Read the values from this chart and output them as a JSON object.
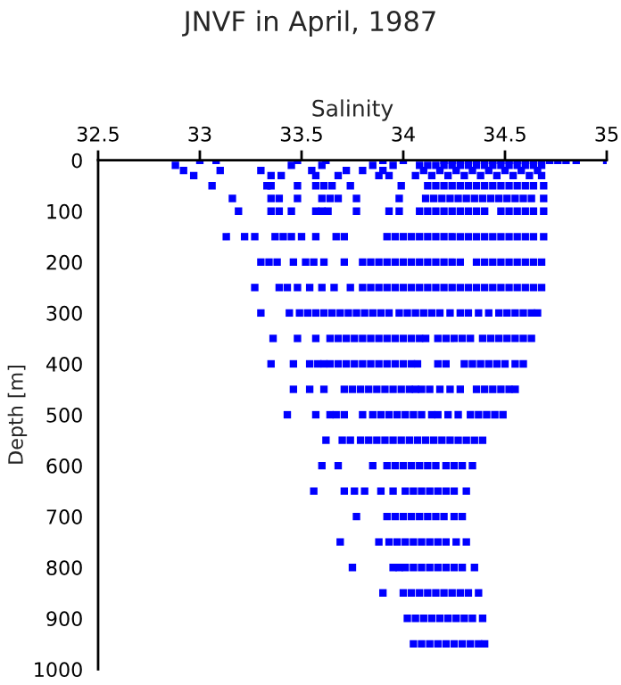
{
  "chart_data": {
    "type": "scatter",
    "title": "JNVF in April, 1987",
    "xlabel": "Salinity",
    "ylabel": "Depth [m]",
    "xlim": [
      32.5,
      35
    ],
    "xticks": [
      32.5,
      33,
      33.5,
      34,
      34.5,
      35
    ],
    "ylim": [
      1000,
      0
    ],
    "yticks": [
      0,
      100,
      200,
      300,
      400,
      500,
      600,
      700,
      800,
      900,
      1000
    ],
    "grid": false,
    "marker": "square",
    "series": [
      {
        "color": "#0000ff",
        "x": [
          33.0,
          33.08,
          33.48,
          33.62,
          33.9,
          34.0,
          34.2,
          34.24,
          34.28,
          34.32,
          34.36,
          34.4,
          34.44,
          34.48,
          34.52,
          34.56,
          34.6,
          34.64,
          34.68,
          34.72,
          34.76,
          34.8,
          34.85,
          35.0
        ],
        "values": [
          0,
          0,
          0,
          0,
          0,
          0,
          0,
          0,
          0,
          0,
          0,
          0,
          0,
          0,
          0,
          0,
          0,
          0,
          0,
          0,
          0,
          0,
          0,
          0
        ]
      },
      {
        "color": "#0000ff",
        "x": [
          32.88,
          33.45,
          33.6,
          33.85,
          33.95,
          34.08,
          34.12,
          34.16,
          34.2,
          34.24,
          34.28,
          34.32,
          34.36,
          34.4,
          34.44,
          34.48,
          34.52,
          34.56,
          34.6,
          34.64,
          34.68
        ],
        "values": [
          10,
          10,
          10,
          10,
          10,
          10,
          10,
          10,
          10,
          10,
          10,
          10,
          10,
          10,
          10,
          10,
          10,
          10,
          10,
          10,
          10
        ]
      },
      {
        "color": "#0000ff",
        "x": [
          32.92,
          33.1,
          33.3,
          33.55,
          33.72,
          33.8,
          33.9,
          34.1,
          34.18,
          34.26,
          34.34,
          34.42,
          34.5,
          34.58,
          34.66
        ],
        "values": [
          20,
          20,
          20,
          20,
          20,
          20,
          20,
          20,
          20,
          20,
          20,
          20,
          20,
          20,
          20
        ]
      },
      {
        "color": "#0000ff",
        "x": [
          32.97,
          33.35,
          33.4,
          33.57,
          33.68,
          33.88,
          33.93,
          34.06,
          34.14,
          34.22,
          34.3,
          34.38,
          34.46,
          34.54,
          34.62,
          34.68
        ],
        "values": [
          30,
          30,
          30,
          30,
          30,
          30,
          30,
          30,
          30,
          30,
          30,
          30,
          30,
          30,
          30,
          30
        ]
      },
      {
        "color": "#0000ff",
        "x": [
          33.06,
          33.33,
          33.35,
          33.48,
          33.57,
          33.61,
          33.65,
          33.74,
          33.99,
          34.12,
          34.16,
          34.2,
          34.24,
          34.28,
          34.32,
          34.36,
          34.4,
          34.44,
          34.48,
          34.52,
          34.56,
          34.6,
          34.64,
          34.69
        ],
        "values": [
          50,
          50,
          50,
          50,
          50,
          50,
          50,
          50,
          50,
          50,
          50,
          50,
          50,
          50,
          50,
          50,
          50,
          50,
          50,
          50,
          50,
          50,
          50,
          50
        ]
      },
      {
        "color": "#0000ff",
        "x": [
          33.16,
          33.35,
          33.39,
          33.48,
          33.6,
          33.64,
          33.68,
          33.77,
          33.98,
          34.11,
          34.15,
          34.19,
          34.23,
          34.27,
          34.31,
          34.35,
          34.39,
          34.43,
          34.47,
          34.51,
          34.55,
          34.59,
          34.63,
          34.69
        ],
        "values": [
          75,
          75,
          75,
          75,
          75,
          75,
          75,
          75,
          75,
          75,
          75,
          75,
          75,
          75,
          75,
          75,
          75,
          75,
          75,
          75,
          75,
          75,
          75,
          75
        ]
      },
      {
        "color": "#0000ff",
        "x": [
          33.19,
          33.35,
          33.39,
          33.45,
          33.57,
          33.6,
          33.63,
          33.77,
          33.93,
          33.98,
          34.08,
          34.12,
          34.16,
          34.2,
          34.24,
          34.28,
          34.32,
          34.36,
          34.4,
          34.48,
          34.52,
          34.56,
          34.6,
          34.64,
          34.69
        ],
        "values": [
          100,
          100,
          100,
          100,
          100,
          100,
          100,
          100,
          100,
          100,
          100,
          100,
          100,
          100,
          100,
          100,
          100,
          100,
          100,
          100,
          100,
          100,
          100,
          100,
          100
        ]
      },
      {
        "color": "#0000ff",
        "x": [
          33.13,
          33.22,
          33.27,
          33.37,
          33.41,
          33.45,
          33.5,
          33.57,
          33.67,
          33.71,
          33.92,
          33.96,
          34.0,
          34.04,
          34.08,
          34.12,
          34.16,
          34.2,
          34.24,
          34.28,
          34.32,
          34.36,
          34.4,
          34.44,
          34.48,
          34.52,
          34.56,
          34.6,
          34.64,
          34.69
        ],
        "values": [
          150,
          150,
          150,
          150,
          150,
          150,
          150,
          150,
          150,
          150,
          150,
          150,
          150,
          150,
          150,
          150,
          150,
          150,
          150,
          150,
          150,
          150,
          150,
          150,
          150,
          150,
          150,
          150,
          150,
          150
        ]
      },
      {
        "color": "#0000ff",
        "x": [
          33.3,
          33.34,
          33.38,
          33.46,
          33.52,
          33.56,
          33.61,
          33.71,
          33.8,
          33.84,
          33.88,
          33.92,
          33.96,
          34.0,
          34.04,
          34.08,
          34.12,
          34.16,
          34.2,
          34.24,
          34.28,
          34.36,
          34.4,
          34.44,
          34.48,
          34.52,
          34.56,
          34.6,
          34.64,
          34.68
        ],
        "values": [
          200,
          200,
          200,
          200,
          200,
          200,
          200,
          200,
          200,
          200,
          200,
          200,
          200,
          200,
          200,
          200,
          200,
          200,
          200,
          200,
          200,
          200,
          200,
          200,
          200,
          200,
          200,
          200,
          200,
          200
        ]
      },
      {
        "color": "#0000ff",
        "x": [
          33.27,
          33.39,
          33.43,
          33.48,
          33.54,
          33.6,
          33.66,
          33.74,
          33.8,
          33.84,
          33.88,
          33.92,
          33.96,
          34.0,
          34.04,
          34.08,
          34.12,
          34.16,
          34.2,
          34.24,
          34.28,
          34.32,
          34.36,
          34.4,
          34.44,
          34.48,
          34.52,
          34.56,
          34.6,
          34.64,
          34.68
        ],
        "values": [
          250,
          250,
          250,
          250,
          250,
          250,
          250,
          250,
          250,
          250,
          250,
          250,
          250,
          250,
          250,
          250,
          250,
          250,
          250,
          250,
          250,
          250,
          250,
          250,
          250,
          250,
          250,
          250,
          250,
          250,
          250
        ]
      },
      {
        "color": "#0000ff",
        "x": [
          33.3,
          33.44,
          33.49,
          33.53,
          33.57,
          33.61,
          33.65,
          33.69,
          33.73,
          33.77,
          33.81,
          33.85,
          33.89,
          33.93,
          33.98,
          34.02,
          34.06,
          34.1,
          34.14,
          34.18,
          34.23,
          34.28,
          34.32,
          34.37,
          34.42,
          34.47,
          34.51,
          34.55,
          34.59,
          34.63,
          34.66
        ],
        "values": [
          300,
          300,
          300,
          300,
          300,
          300,
          300,
          300,
          300,
          300,
          300,
          300,
          300,
          300,
          300,
          300,
          300,
          300,
          300,
          300,
          300,
          300,
          300,
          300,
          300,
          300,
          300,
          300,
          300,
          300,
          300
        ]
      },
      {
        "color": "#0000ff",
        "x": [
          33.36,
          33.48,
          33.57,
          33.64,
          33.68,
          33.72,
          33.76,
          33.8,
          33.84,
          33.88,
          33.92,
          33.96,
          34.0,
          34.04,
          34.08,
          34.11,
          34.17,
          34.21,
          34.25,
          34.29,
          34.33,
          34.39,
          34.43,
          34.47,
          34.51,
          34.55,
          34.59,
          34.63
        ],
        "values": [
          350,
          350,
          350,
          350,
          350,
          350,
          350,
          350,
          350,
          350,
          350,
          350,
          350,
          350,
          350,
          350,
          350,
          350,
          350,
          350,
          350,
          350,
          350,
          350,
          350,
          350,
          350,
          350
        ]
      },
      {
        "color": "#0000ff",
        "x": [
          33.35,
          33.46,
          33.54,
          33.58,
          33.61,
          33.64,
          33.68,
          33.72,
          33.76,
          33.8,
          33.84,
          33.88,
          33.92,
          33.96,
          34.0,
          34.04,
          34.07,
          34.17,
          34.21,
          34.3,
          34.34,
          34.38,
          34.42,
          34.46,
          34.5,
          34.55,
          34.59
        ],
        "values": [
          400,
          400,
          400,
          400,
          400,
          400,
          400,
          400,
          400,
          400,
          400,
          400,
          400,
          400,
          400,
          400,
          400,
          400,
          400,
          400,
          400,
          400,
          400,
          400,
          400,
          400,
          400
        ]
      },
      {
        "color": "#0000ff",
        "x": [
          33.46,
          33.54,
          33.61,
          33.71,
          33.75,
          33.79,
          33.83,
          33.87,
          33.91,
          33.95,
          33.99,
          34.03,
          34.06,
          34.09,
          34.13,
          34.18,
          34.23,
          34.28,
          34.36,
          34.4,
          34.44,
          34.48,
          34.52,
          34.55
        ],
        "values": [
          450,
          450,
          450,
          450,
          450,
          450,
          450,
          450,
          450,
          450,
          450,
          450,
          450,
          450,
          450,
          450,
          450,
          450,
          450,
          450,
          450,
          450,
          450,
          450
        ]
      },
      {
        "color": "#0000ff",
        "x": [
          33.43,
          33.57,
          33.64,
          33.67,
          33.71,
          33.8,
          33.85,
          33.89,
          33.93,
          33.97,
          34.01,
          34.05,
          34.09,
          34.14,
          34.17,
          34.22,
          34.27,
          34.33,
          34.37,
          34.41,
          34.45,
          34.49
        ],
        "values": [
          500,
          500,
          500,
          500,
          500,
          500,
          500,
          500,
          500,
          500,
          500,
          500,
          500,
          500,
          500,
          500,
          500,
          500,
          500,
          500,
          500,
          500
        ]
      },
      {
        "color": "#0000ff",
        "x": [
          33.62,
          33.7,
          33.74,
          33.79,
          33.83,
          33.87,
          33.91,
          33.95,
          33.99,
          34.03,
          34.07,
          34.11,
          34.15,
          34.19,
          34.23,
          34.27,
          34.31,
          34.35,
          34.39
        ],
        "values": [
          550,
          550,
          550,
          550,
          550,
          550,
          550,
          550,
          550,
          550,
          550,
          550,
          550,
          550,
          550,
          550,
          550,
          550,
          550
        ]
      },
      {
        "color": "#0000ff",
        "x": [
          33.6,
          33.68,
          33.85,
          33.92,
          33.96,
          34.0,
          34.04,
          34.08,
          34.12,
          34.16,
          34.21,
          34.25,
          34.29,
          34.34
        ],
        "values": [
          600,
          600,
          600,
          600,
          600,
          600,
          600,
          600,
          600,
          600,
          600,
          600,
          600,
          600
        ]
      },
      {
        "color": "#0000ff",
        "x": [
          33.56,
          33.71,
          33.76,
          33.81,
          33.89,
          33.95,
          34.01,
          34.05,
          34.09,
          34.13,
          34.17,
          34.21,
          34.25,
          34.31
        ],
        "values": [
          650,
          650,
          650,
          650,
          650,
          650,
          650,
          650,
          650,
          650,
          650,
          650,
          650,
          650
        ]
      },
      {
        "color": "#0000ff",
        "x": [
          33.77,
          33.92,
          33.96,
          34.0,
          34.04,
          34.08,
          34.12,
          34.16,
          34.2,
          34.25,
          34.29
        ],
        "values": [
          700,
          700,
          700,
          700,
          700,
          700,
          700,
          700,
          700,
          700,
          700
        ]
      },
      {
        "color": "#0000ff",
        "x": [
          33.69,
          33.88,
          33.93,
          33.97,
          34.01,
          34.05,
          34.09,
          34.13,
          34.17,
          34.21,
          34.26,
          34.31
        ],
        "values": [
          750,
          750,
          750,
          750,
          750,
          750,
          750,
          750,
          750,
          750,
          750,
          750
        ]
      },
      {
        "color": "#0000ff",
        "x": [
          33.75,
          33.95,
          33.98,
          34.01,
          34.05,
          34.09,
          34.13,
          34.17,
          34.21,
          34.25,
          34.29,
          34.35
        ],
        "values": [
          800,
          800,
          800,
          800,
          800,
          800,
          800,
          800,
          800,
          800,
          800,
          800
        ]
      },
      {
        "color": "#0000ff",
        "x": [
          33.9,
          34.0,
          34.04,
          34.08,
          34.12,
          34.16,
          34.2,
          34.24,
          34.28,
          34.32,
          34.37
        ],
        "values": [
          850,
          850,
          850,
          850,
          850,
          850,
          850,
          850,
          850,
          850,
          850
        ]
      },
      {
        "color": "#0000ff",
        "x": [
          34.02,
          34.06,
          34.1,
          34.14,
          34.18,
          34.22,
          34.26,
          34.3,
          34.34,
          34.39
        ],
        "values": [
          900,
          900,
          900,
          900,
          900,
          900,
          900,
          900,
          900,
          900
        ]
      },
      {
        "color": "#0000ff",
        "x": [
          34.05,
          34.09,
          34.13,
          34.17,
          34.21,
          34.25,
          34.29,
          34.33,
          34.37,
          34.4
        ],
        "values": [
          950,
          950,
          950,
          950,
          950,
          950,
          950,
          950,
          950,
          950
        ]
      }
    ]
  }
}
